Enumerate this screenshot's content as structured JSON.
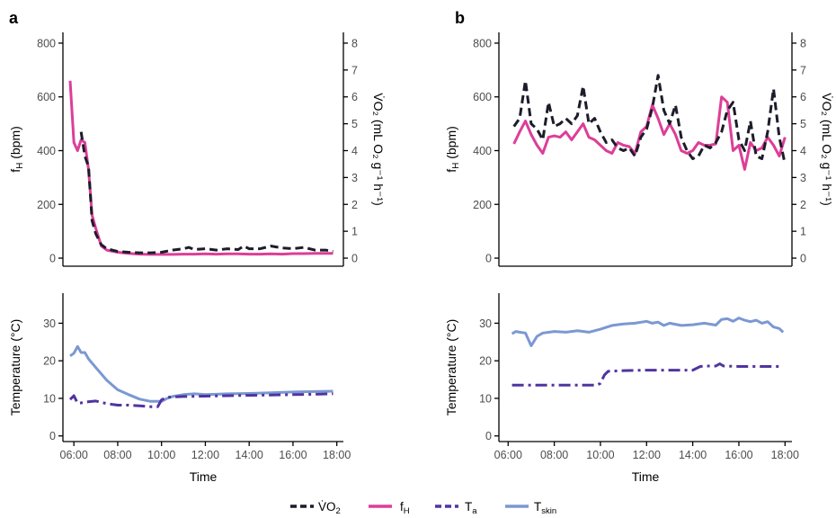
{
  "colors": {
    "vo2": "#1c1c2a",
    "fh": "#dd3e98",
    "ta": "#5134a0",
    "tskin": "#7b98d2"
  },
  "legend": {
    "vo2": {
      "prefix": "V̇O",
      "sub": "2"
    },
    "fh": {
      "prefix": "f",
      "sub": "H"
    },
    "ta": {
      "prefix": "T",
      "sub": "a"
    },
    "tskin": {
      "prefix": "T",
      "sub": "skin"
    }
  },
  "chart_data": [
    {
      "id": "a-top",
      "panel_label": "a",
      "type": "line",
      "xlim": [
        5.5,
        18.3
      ],
      "ylim": [
        -30,
        840
      ],
      "y_ticks": [
        0,
        200,
        400,
        600,
        800
      ],
      "y_tick_labels": [
        "0",
        "200",
        "400",
        "600",
        "800"
      ],
      "ylabel": {
        "main": "f",
        "sub": "H",
        "tail": " (bpm)"
      },
      "y2_ticks": [
        0,
        1,
        2,
        3,
        4,
        5,
        6,
        7,
        8
      ],
      "y2_tick_labels": [
        "0",
        "1",
        "2",
        "3",
        "4",
        "5",
        "6",
        "7",
        "8"
      ],
      "y2label": "V̇O₂ (mL O₂ g⁻¹ h⁻¹)",
      "series": [
        {
          "key": "fh",
          "style": "solid",
          "x": [
            5.83,
            6.0,
            6.17,
            6.33,
            6.5,
            6.67,
            6.83,
            7.0,
            7.25,
            7.5,
            8.0,
            8.5,
            9.0,
            9.5,
            10.0,
            10.5,
            11.0,
            11.5,
            12.0,
            12.5,
            13.0,
            13.5,
            14.0,
            14.5,
            15.0,
            15.5,
            16.0,
            16.5,
            17.0,
            17.5,
            17.83
          ],
          "y": [
            660,
            430,
            400,
            440,
            430,
            330,
            160,
            110,
            45,
            30,
            22,
            18,
            15,
            14,
            14,
            14,
            15,
            15,
            16,
            15,
            16,
            16,
            15,
            15,
            16,
            15,
            17,
            17,
            18,
            18,
            18
          ]
        },
        {
          "key": "vo2",
          "style": "dash",
          "x": [
            6.33,
            6.5,
            6.67,
            6.83,
            7.0,
            7.25,
            7.5,
            8.0,
            8.5,
            9.0,
            9.5,
            10.0,
            10.5,
            11.0,
            11.25,
            11.5,
            12.0,
            12.5,
            13.0,
            13.5,
            13.75,
            14.0,
            14.5,
            15.0,
            15.5,
            16.0,
            16.5,
            17.0,
            17.5,
            17.83
          ],
          "y": [
            4.7,
            3.8,
            3.4,
            1.4,
            0.9,
            0.5,
            0.35,
            0.25,
            0.22,
            0.2,
            0.2,
            0.22,
            0.3,
            0.35,
            0.4,
            0.32,
            0.35,
            0.3,
            0.35,
            0.32,
            0.45,
            0.35,
            0.35,
            0.45,
            0.38,
            0.35,
            0.4,
            0.3,
            0.3,
            0.25
          ]
        }
      ]
    },
    {
      "id": "a-bottom",
      "type": "line",
      "xlim": [
        5.5,
        18.3
      ],
      "ylim": [
        -1.5,
        38
      ],
      "y_ticks": [
        0,
        10,
        20,
        30
      ],
      "y_tick_labels": [
        "0",
        "10",
        "20",
        "30"
      ],
      "ylabel": "Temperature (°C)",
      "xlabel": "Time",
      "x_ticks": [
        6,
        8,
        10,
        12,
        14,
        16,
        18
      ],
      "x_tick_labels": [
        "06:00",
        "08:00",
        "10:00",
        "12:00",
        "14:00",
        "16:00",
        "18:00"
      ],
      "series": [
        {
          "key": "tskin",
          "style": "solid",
          "x": [
            5.83,
            6.0,
            6.17,
            6.33,
            6.5,
            6.67,
            7.0,
            7.5,
            8.0,
            8.5,
            9.0,
            9.5,
            10.0,
            10.25,
            10.5,
            11.0,
            11.5,
            12.0,
            12.5,
            13.0,
            14.0,
            15.0,
            16.0,
            17.0,
            17.83
          ],
          "y": [
            21.3,
            22,
            23.8,
            22.2,
            22.2,
            20.5,
            18.2,
            14.8,
            12.3,
            11,
            9.8,
            9.2,
            9.2,
            10,
            10.5,
            11,
            11.2,
            11,
            11.1,
            11.2,
            11.3,
            11.5,
            11.7,
            11.8,
            11.9
          ]
        },
        {
          "key": "ta",
          "style": "dashdot",
          "x": [
            5.83,
            6.0,
            6.17,
            6.33,
            6.5,
            7.0,
            7.5,
            8.0,
            8.5,
            9.0,
            9.5,
            9.83,
            10.0,
            10.25,
            11.0,
            12.0,
            13.0,
            14.0,
            15.0,
            16.0,
            17.0,
            17.83
          ],
          "y": [
            9.7,
            10.7,
            8.7,
            8.8,
            9.0,
            9.3,
            8.6,
            8.2,
            8.2,
            8.0,
            7.8,
            7.8,
            9.6,
            10.3,
            10.5,
            10.6,
            10.7,
            10.8,
            10.9,
            11.0,
            11.1,
            11.2
          ]
        }
      ]
    },
    {
      "id": "b-top",
      "panel_label": "b",
      "type": "line",
      "xlim": [
        5.6,
        18.3
      ],
      "ylim": [
        -30,
        840
      ],
      "y_ticks": [
        0,
        200,
        400,
        600,
        800
      ],
      "y_tick_labels": [
        "0",
        "200",
        "400",
        "600",
        "800"
      ],
      "ylabel": {
        "main": "f",
        "sub": "H",
        "tail": " (bpm)"
      },
      "y2_ticks": [
        0,
        1,
        2,
        3,
        4,
        5,
        6,
        7,
        8
      ],
      "y2_tick_labels": [
        "0",
        "1",
        "2",
        "3",
        "4",
        "5",
        "6",
        "7",
        "8"
      ],
      "y2label": "V̇O₂ (mL O₂ g⁻¹ h⁻¹)",
      "series": [
        {
          "key": "fh",
          "style": "solid",
          "x": [
            6.25,
            6.5,
            6.75,
            7.0,
            7.25,
            7.5,
            7.75,
            8.0,
            8.25,
            8.5,
            8.75,
            9.0,
            9.25,
            9.5,
            9.75,
            10.0,
            10.25,
            10.5,
            10.75,
            11.0,
            11.25,
            11.5,
            11.75,
            12.0,
            12.25,
            12.5,
            12.75,
            13.0,
            13.25,
            13.5,
            13.75,
            14.0,
            14.25,
            14.5,
            14.75,
            15.0,
            15.25,
            15.5,
            15.75,
            16.0,
            16.25,
            16.5,
            16.75,
            17.0,
            17.25,
            17.5,
            17.75,
            18.0
          ],
          "y": [
            425,
            470,
            510,
            460,
            420,
            390,
            450,
            455,
            450,
            470,
            440,
            470,
            500,
            450,
            440,
            420,
            400,
            390,
            430,
            420,
            415,
            390,
            470,
            490,
            570,
            520,
            460,
            500,
            460,
            400,
            390,
            400,
            430,
            420,
            420,
            425,
            600,
            580,
            400,
            420,
            330,
            430,
            400,
            410,
            450,
            420,
            380,
            450
          ]
        },
        {
          "key": "vo2",
          "style": "dash",
          "x": [
            6.25,
            6.5,
            6.75,
            7.0,
            7.25,
            7.5,
            7.75,
            8.0,
            8.25,
            8.5,
            8.75,
            9.0,
            9.25,
            9.5,
            9.75,
            10.0,
            10.25,
            10.5,
            10.75,
            11.0,
            11.25,
            11.5,
            11.75,
            12.0,
            12.25,
            12.5,
            12.75,
            13.0,
            13.25,
            13.5,
            13.75,
            14.0,
            14.25,
            14.5,
            14.75,
            15.0,
            15.25,
            15.5,
            15.75,
            16.0,
            16.25,
            16.5,
            16.75,
            17.0,
            17.25,
            17.5,
            17.75,
            18.0
          ],
          "y": [
            4.9,
            5.2,
            6.6,
            5.0,
            4.8,
            4.4,
            5.8,
            4.9,
            5.0,
            5.2,
            5.0,
            5.3,
            6.4,
            5.0,
            5.2,
            4.7,
            4.3,
            4.4,
            4.1,
            4.0,
            4.1,
            3.8,
            4.5,
            4.8,
            5.6,
            6.8,
            5.5,
            5.0,
            5.7,
            4.5,
            4.0,
            3.7,
            3.8,
            4.2,
            4.1,
            4.3,
            4.7,
            5.5,
            5.8,
            4.4,
            4.0,
            5.1,
            3.8,
            3.7,
            4.7,
            6.3,
            4.5,
            3.5
          ]
        }
      ]
    },
    {
      "id": "b-bottom",
      "type": "line",
      "xlim": [
        5.6,
        18.3
      ],
      "ylim": [
        -1.5,
        38
      ],
      "y_ticks": [
        0,
        10,
        20,
        30
      ],
      "y_tick_labels": [
        "0",
        "10",
        "20",
        "30"
      ],
      "ylabel": "Temperature (°C)",
      "xlabel": "Time",
      "x_ticks": [
        6,
        8,
        10,
        12,
        14,
        16,
        18
      ],
      "x_tick_labels": [
        "06:00",
        "08:00",
        "10:00",
        "12:00",
        "14:00",
        "16:00",
        "18:00"
      ],
      "series": [
        {
          "key": "tskin",
          "style": "solid",
          "x": [
            6.17,
            6.33,
            6.5,
            6.75,
            7.0,
            7.25,
            7.5,
            8.0,
            8.5,
            9.0,
            9.5,
            10.0,
            10.5,
            11.0,
            11.5,
            12.0,
            12.25,
            12.5,
            12.75,
            13.0,
            13.5,
            14.0,
            14.5,
            15.0,
            15.25,
            15.5,
            15.75,
            16.0,
            16.25,
            16.5,
            16.75,
            17.0,
            17.25,
            17.5,
            17.75,
            17.92
          ],
          "y": [
            27.2,
            27.8,
            27.6,
            27.4,
            24.0,
            26.5,
            27.4,
            27.8,
            27.6,
            28.0,
            27.6,
            28.4,
            29.4,
            29.8,
            30.0,
            30.5,
            30.0,
            30.3,
            29.4,
            30.0,
            29.4,
            29.6,
            30.0,
            29.5,
            31.0,
            31.2,
            30.5,
            31.4,
            30.8,
            30.4,
            30.8,
            30.0,
            30.4,
            29.0,
            28.6,
            27.6
          ]
        },
        {
          "key": "ta",
          "style": "dashdot",
          "x": [
            6.17,
            7.0,
            8.0,
            9.0,
            9.83,
            10.0,
            10.17,
            10.33,
            11.0,
            12.0,
            13.0,
            14.0,
            14.33,
            14.5,
            15.0,
            15.17,
            15.33,
            16.0,
            17.0,
            17.92
          ],
          "y": [
            13.5,
            13.5,
            13.5,
            13.5,
            13.5,
            14.0,
            16.2,
            17.2,
            17.4,
            17.5,
            17.5,
            17.5,
            18.5,
            18.6,
            18.6,
            19.2,
            18.6,
            18.5,
            18.5,
            18.5
          ]
        }
      ]
    }
  ]
}
